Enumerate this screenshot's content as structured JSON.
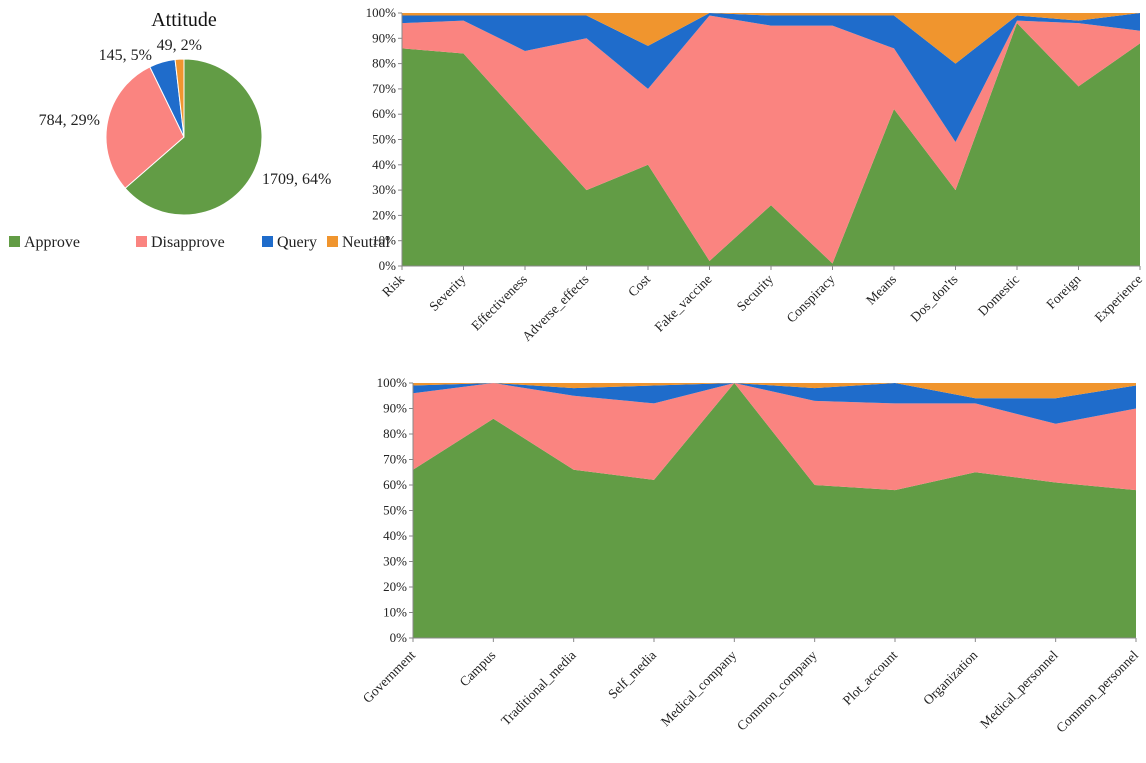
{
  "colors": {
    "Approve": "#629C45",
    "Disapprove": "#FA8480",
    "Query": "#1F6CCB",
    "Neutral": "#F0952E",
    "axis": "#888888"
  },
  "chart_data": [
    {
      "id": "pie",
      "type": "pie",
      "title": "Attitude",
      "legend_position": "bottom",
      "slices": [
        {
          "name": "Approve",
          "value": 1709,
          "label": "1709, 64%"
        },
        {
          "name": "Disapprove",
          "value": 784,
          "label": "784, 29%"
        },
        {
          "name": "Query",
          "value": 145,
          "label": "145, 5%"
        },
        {
          "name": "Neutral",
          "value": 49,
          "label": "49, 2%"
        }
      ]
    },
    {
      "id": "topics",
      "type": "area",
      "stacked": "percent",
      "ylim": [
        0,
        100
      ],
      "yticks": [
        "0%",
        "10%",
        "20%",
        "30%",
        "40%",
        "50%",
        "60%",
        "70%",
        "80%",
        "90%",
        "100%"
      ],
      "categories": [
        "Risk",
        "Severity",
        "Effectiveness",
        "Adverse_effects",
        "Cost",
        "Fake_vaccine",
        "Security",
        "Conspiracy",
        "Means",
        "Dos_don'ts",
        "Domestic",
        "Foreign",
        "Experience"
      ],
      "series": [
        {
          "name": "Approve",
          "values": [
            86,
            84,
            57,
            30,
            40,
            2,
            24,
            1,
            62,
            30,
            96,
            71,
            88
          ]
        },
        {
          "name": "Disapprove",
          "values": [
            10,
            13,
            28,
            60,
            30,
            97,
            71,
            94,
            24,
            19,
            1,
            25,
            5
          ]
        },
        {
          "name": "Query",
          "values": [
            3,
            2,
            14,
            9,
            17,
            1,
            4,
            4,
            13,
            31,
            2,
            1,
            7
          ]
        },
        {
          "name": "Neutral",
          "values": [
            1,
            1,
            1,
            1,
            13,
            0,
            1,
            1,
            1,
            20,
            1,
            3,
            0
          ]
        }
      ]
    },
    {
      "id": "sources",
      "type": "area",
      "stacked": "percent",
      "ylim": [
        0,
        100
      ],
      "yticks": [
        "0%",
        "10%",
        "20%",
        "30%",
        "40%",
        "50%",
        "60%",
        "70%",
        "80%",
        "90%",
        "100%"
      ],
      "categories": [
        "Government",
        "Campus",
        "Traditional_media",
        "Self_media",
        "Medical_company",
        "Common_company",
        "Plot_account",
        "Organization",
        "Medical_personnel",
        "Common_personnel"
      ],
      "series": [
        {
          "name": "Approve",
          "values": [
            66,
            86,
            66,
            62,
            100,
            60,
            58,
            65,
            61,
            58
          ]
        },
        {
          "name": "Disapprove",
          "values": [
            30,
            14,
            29,
            30,
            0,
            33,
            34,
            27,
            23,
            32
          ]
        },
        {
          "name": "Query",
          "values": [
            3,
            0,
            3,
            7,
            0,
            5,
            8,
            2,
            10,
            9
          ]
        },
        {
          "name": "Neutral",
          "values": [
            1,
            0,
            2,
            1,
            0,
            2,
            0,
            6,
            6,
            1
          ]
        }
      ]
    }
  ]
}
